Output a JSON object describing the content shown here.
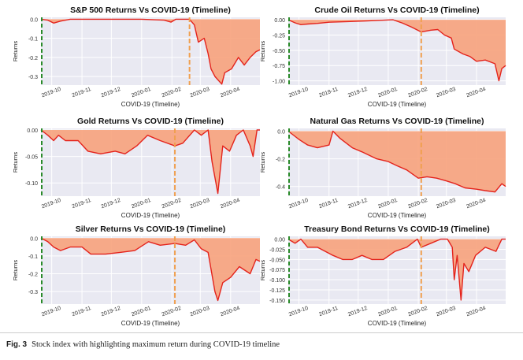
{
  "caption": {
    "label": "Fig. 3",
    "text": "Stock index with highlighting maximum return during COVID-19 timeline"
  },
  "colors": {
    "fill": "#f7a27c",
    "line": "#e4231c",
    "bg": "#e9e9f2",
    "grid": "#ffffff",
    "green": "#2a8a2a",
    "orange": "#f0a050"
  },
  "chart_data": [
    {
      "type": "area",
      "title": "S&P 500 Returns Vs COVID-19 (Timeline)",
      "xlabel": "COVID-19 (Timeline)",
      "ylabel": "Returns",
      "x_ticks": [
        "2019-10",
        "2019-11",
        "2019-12",
        "2020-01",
        "2020-02",
        "2020-03",
        "2020-04"
      ],
      "xlim": [
        "2019-09-20",
        "2020-05-01"
      ],
      "ylim": [
        -0.345,
        0.01
      ],
      "y_ticks": [
        0.0,
        -0.1,
        -0.2,
        -0.3
      ],
      "y_tick_labels": [
        "0.0",
        "-0.1",
        "-0.2",
        "-0.3"
      ],
      "green_line_x": "2019-09-20",
      "orange_line_x": "2020-02-19",
      "points": [
        [
          "2019-09-20",
          0.0
        ],
        [
          "2019-09-27",
          -0.005
        ],
        [
          "2019-10-03",
          -0.02
        ],
        [
          "2019-10-10",
          -0.01
        ],
        [
          "2019-10-20",
          0.0
        ],
        [
          "2019-11-01",
          0.0
        ],
        [
          "2019-12-01",
          0.0
        ],
        [
          "2020-01-01",
          0.0
        ],
        [
          "2020-01-24",
          -0.005
        ],
        [
          "2020-01-31",
          -0.015
        ],
        [
          "2020-02-05",
          0.0
        ],
        [
          "2020-02-19",
          0.0
        ],
        [
          "2020-02-24",
          -0.03
        ],
        [
          "2020-02-28",
          -0.12
        ],
        [
          "2020-03-05",
          -0.1
        ],
        [
          "2020-03-09",
          -0.18
        ],
        [
          "2020-03-12",
          -0.26
        ],
        [
          "2020-03-16",
          -0.3
        ],
        [
          "2020-03-23",
          -0.34
        ],
        [
          "2020-03-26",
          -0.28
        ],
        [
          "2020-04-02",
          -0.26
        ],
        [
          "2020-04-09",
          -0.2
        ],
        [
          "2020-04-15",
          -0.24
        ],
        [
          "2020-04-21",
          -0.2
        ],
        [
          "2020-04-27",
          -0.17
        ],
        [
          "2020-05-01",
          -0.16
        ]
      ]
    },
    {
      "type": "area",
      "title": "Crude Oil Returns Vs COVID-19 (Timeline)",
      "xlabel": "COVID-19 (Timeline)",
      "ylabel": "Returns",
      "x_ticks": [
        "2019-10",
        "2019-11",
        "2019-12",
        "2020-01",
        "2020-02",
        "2020-03",
        "2020-04"
      ],
      "xlim": [
        "2019-09-20",
        "2020-05-01"
      ],
      "ylim": [
        -1.07,
        0.04
      ],
      "y_ticks": [
        0.0,
        -0.25,
        -0.5,
        -0.75,
        -1.0
      ],
      "y_tick_labels": [
        "0.00",
        "-0.25",
        "-0.50",
        "-0.75",
        "-1.00"
      ],
      "green_line_x": "2019-09-20",
      "orange_line_x": "2020-02-04",
      "points": [
        [
          "2019-09-20",
          0.0
        ],
        [
          "2019-09-27",
          -0.05
        ],
        [
          "2019-10-03",
          -0.08
        ],
        [
          "2019-10-10",
          -0.07
        ],
        [
          "2019-10-20",
          -0.06
        ],
        [
          "2019-11-01",
          -0.04
        ],
        [
          "2019-11-20",
          -0.03
        ],
        [
          "2019-12-10",
          -0.02
        ],
        [
          "2020-01-06",
          0.0
        ],
        [
          "2020-01-15",
          -0.05
        ],
        [
          "2020-01-25",
          -0.12
        ],
        [
          "2020-02-04",
          -0.2
        ],
        [
          "2020-02-14",
          -0.17
        ],
        [
          "2020-02-21",
          -0.16
        ],
        [
          "2020-02-28",
          -0.25
        ],
        [
          "2020-03-06",
          -0.3
        ],
        [
          "2020-03-09",
          -0.48
        ],
        [
          "2020-03-18",
          -0.56
        ],
        [
          "2020-03-25",
          -0.6
        ],
        [
          "2020-04-01",
          -0.68
        ],
        [
          "2020-04-10",
          -0.66
        ],
        [
          "2020-04-20",
          -0.72
        ],
        [
          "2020-04-24",
          -1.0
        ],
        [
          "2020-04-27",
          -0.8
        ],
        [
          "2020-05-01",
          -0.75
        ]
      ]
    },
    {
      "type": "area",
      "title": "Gold Returns Vs COVID-19 (Timeline)",
      "xlabel": "COVID-19 (Timeline)",
      "ylabel": "Returns",
      "x_ticks": [
        "2019-10",
        "2019-11",
        "2019-12",
        "2020-01",
        "2020-02",
        "2020-03",
        "2020-04"
      ],
      "xlim": [
        "2019-09-20",
        "2020-05-01"
      ],
      "ylim": [
        -0.125,
        0.003
      ],
      "y_ticks": [
        0.0,
        -0.05,
        -0.1
      ],
      "y_tick_labels": [
        "0.00",
        "-0.05",
        "-0.10"
      ],
      "green_line_x": "2019-09-20",
      "orange_line_x": "2020-02-04",
      "points": [
        [
          "2019-09-20",
          0.0
        ],
        [
          "2019-09-27",
          -0.01
        ],
        [
          "2019-10-03",
          -0.02
        ],
        [
          "2019-10-08",
          -0.01
        ],
        [
          "2019-10-15",
          -0.02
        ],
        [
          "2019-10-28",
          -0.02
        ],
        [
          "2019-11-07",
          -0.04
        ],
        [
          "2019-11-20",
          -0.045
        ],
        [
          "2019-12-05",
          -0.04
        ],
        [
          "2019-12-15",
          -0.045
        ],
        [
          "2019-12-27",
          -0.03
        ],
        [
          "2020-01-07",
          -0.01
        ],
        [
          "2020-01-20",
          -0.02
        ],
        [
          "2020-02-04",
          -0.03
        ],
        [
          "2020-02-12",
          -0.025
        ],
        [
          "2020-02-24",
          0.0
        ],
        [
          "2020-03-02",
          -0.01
        ],
        [
          "2020-03-09",
          0.0
        ],
        [
          "2020-03-13",
          -0.06
        ],
        [
          "2020-03-19",
          -0.12
        ],
        [
          "2020-03-24",
          -0.03
        ],
        [
          "2020-03-31",
          -0.04
        ],
        [
          "2020-04-07",
          -0.01
        ],
        [
          "2020-04-14",
          0.0
        ],
        [
          "2020-04-21",
          -0.03
        ],
        [
          "2020-04-24",
          -0.05
        ],
        [
          "2020-04-28",
          0.0
        ],
        [
          "2020-05-01",
          0.0
        ]
      ]
    },
    {
      "type": "area",
      "title": "Natural Gas Returns Vs COVID-19 (Timeline)",
      "xlabel": "COVID-19 (Timeline)",
      "ylabel": "Returns",
      "x_ticks": [
        "2019-10",
        "2019-11",
        "2019-12",
        "2020-01",
        "2020-02",
        "2020-03",
        "2020-04"
      ],
      "xlim": [
        "2019-09-20",
        "2020-05-01"
      ],
      "ylim": [
        -0.47,
        0.02
      ],
      "y_ticks": [
        0.0,
        -0.2,
        -0.4
      ],
      "y_tick_labels": [
        "0.0",
        "-0.2",
        "-0.4"
      ],
      "green_line_x": "2019-09-20",
      "orange_line_x": "2020-02-04",
      "points": [
        [
          "2019-09-20",
          0.0
        ],
        [
          "2019-10-01",
          -0.06
        ],
        [
          "2019-10-10",
          -0.1
        ],
        [
          "2019-10-20",
          -0.12
        ],
        [
          "2019-11-01",
          -0.1
        ],
        [
          "2019-11-05",
          0.0
        ],
        [
          "2019-11-12",
          -0.05
        ],
        [
          "2019-11-25",
          -0.12
        ],
        [
          "2019-12-05",
          -0.15
        ],
        [
          "2019-12-20",
          -0.2
        ],
        [
          "2020-01-01",
          -0.22
        ],
        [
          "2020-01-10",
          -0.25
        ],
        [
          "2020-01-20",
          -0.28
        ],
        [
          "2020-02-01",
          -0.34
        ],
        [
          "2020-02-10",
          -0.33
        ],
        [
          "2020-02-20",
          -0.34
        ],
        [
          "2020-03-01",
          -0.36
        ],
        [
          "2020-03-10",
          -0.38
        ],
        [
          "2020-03-20",
          -0.41
        ],
        [
          "2020-04-01",
          -0.42
        ],
        [
          "2020-04-10",
          -0.43
        ],
        [
          "2020-04-20",
          -0.44
        ],
        [
          "2020-04-27",
          -0.38
        ],
        [
          "2020-05-01",
          -0.4
        ]
      ]
    },
    {
      "type": "area",
      "title": "Silver Returns Vs COVID-19 (Timeline)",
      "xlabel": "COVID-19 (Timeline)",
      "ylabel": "Returns",
      "x_ticks": [
        "2019-10",
        "2019-11",
        "2019-12",
        "2020-01",
        "2020-02",
        "2020-03",
        "2020-04"
      ],
      "xlim": [
        "2019-09-20",
        "2020-05-01"
      ],
      "ylim": [
        -0.37,
        0.01
      ],
      "y_ticks": [
        0.0,
        -0.1,
        -0.2,
        -0.3
      ],
      "y_tick_labels": [
        "0.0",
        "-0.1",
        "-0.2",
        "-0.3"
      ],
      "green_line_x": "2019-09-20",
      "orange_line_x": "2020-02-04",
      "points": [
        [
          "2019-09-20",
          0.0
        ],
        [
          "2019-09-27",
          -0.02
        ],
        [
          "2019-10-03",
          -0.05
        ],
        [
          "2019-10-10",
          -0.07
        ],
        [
          "2019-10-20",
          -0.05
        ],
        [
          "2019-11-01",
          -0.05
        ],
        [
          "2019-11-10",
          -0.09
        ],
        [
          "2019-11-25",
          -0.09
        ],
        [
          "2019-12-10",
          -0.08
        ],
        [
          "2019-12-25",
          -0.07
        ],
        [
          "2020-01-08",
          -0.02
        ],
        [
          "2020-01-20",
          -0.04
        ],
        [
          "2020-02-04",
          -0.03
        ],
        [
          "2020-02-15",
          -0.04
        ],
        [
          "2020-02-24",
          -0.01
        ],
        [
          "2020-03-02",
          -0.06
        ],
        [
          "2020-03-09",
          -0.08
        ],
        [
          "2020-03-16",
          -0.3
        ],
        [
          "2020-03-19",
          -0.35
        ],
        [
          "2020-03-24",
          -0.25
        ],
        [
          "2020-04-01",
          -0.22
        ],
        [
          "2020-04-10",
          -0.16
        ],
        [
          "2020-04-21",
          -0.2
        ],
        [
          "2020-04-27",
          -0.12
        ],
        [
          "2020-05-01",
          -0.13
        ]
      ]
    },
    {
      "type": "area",
      "title": "Treasury Bond Returns Vs COVID-19 (Timeline)",
      "xlabel": "COVID-19 (Timeline)",
      "ylabel": "Returns",
      "x_ticks": [
        "2019-10",
        "2019-11",
        "2019-12",
        "2020-01",
        "2020-02",
        "2020-03",
        "2020-04"
      ],
      "xlim": [
        "2019-09-20",
        "2020-05-01"
      ],
      "ylim": [
        -0.16,
        0.007
      ],
      "y_ticks": [
        0.0,
        -0.025,
        -0.05,
        -0.075,
        -0.1,
        -0.125,
        -0.15
      ],
      "y_tick_labels": [
        "0.00",
        "-0.025",
        "-0.050",
        "-0.075",
        "-0.100",
        "-0.125",
        "-0.150"
      ],
      "green_line_x": "2019-09-20",
      "orange_line_x": "2020-02-04",
      "points": [
        [
          "2019-09-20",
          0.0
        ],
        [
          "2019-09-27",
          -0.01
        ],
        [
          "2019-10-03",
          0.0
        ],
        [
          "2019-10-10",
          -0.02
        ],
        [
          "2019-10-20",
          -0.02
        ],
        [
          "2019-11-05",
          -0.04
        ],
        [
          "2019-11-15",
          -0.05
        ],
        [
          "2019-11-25",
          -0.05
        ],
        [
          "2019-12-05",
          -0.04
        ],
        [
          "2019-12-15",
          -0.05
        ],
        [
          "2019-12-27",
          -0.05
        ],
        [
          "2020-01-08",
          -0.03
        ],
        [
          "2020-01-20",
          -0.02
        ],
        [
          "2020-01-31",
          0.0
        ],
        [
          "2020-02-04",
          -0.02
        ],
        [
          "2020-02-14",
          -0.01
        ],
        [
          "2020-02-24",
          0.0
        ],
        [
          "2020-03-02",
          0.0
        ],
        [
          "2020-03-07",
          -0.02
        ],
        [
          "2020-03-09",
          -0.1
        ],
        [
          "2020-03-12",
          -0.04
        ],
        [
          "2020-03-16",
          -0.15
        ],
        [
          "2020-03-19",
          -0.06
        ],
        [
          "2020-03-24",
          -0.08
        ],
        [
          "2020-03-31",
          -0.04
        ],
        [
          "2020-04-10",
          -0.02
        ],
        [
          "2020-04-21",
          -0.03
        ],
        [
          "2020-04-27",
          0.0
        ],
        [
          "2020-05-01",
          0.0
        ]
      ]
    }
  ]
}
